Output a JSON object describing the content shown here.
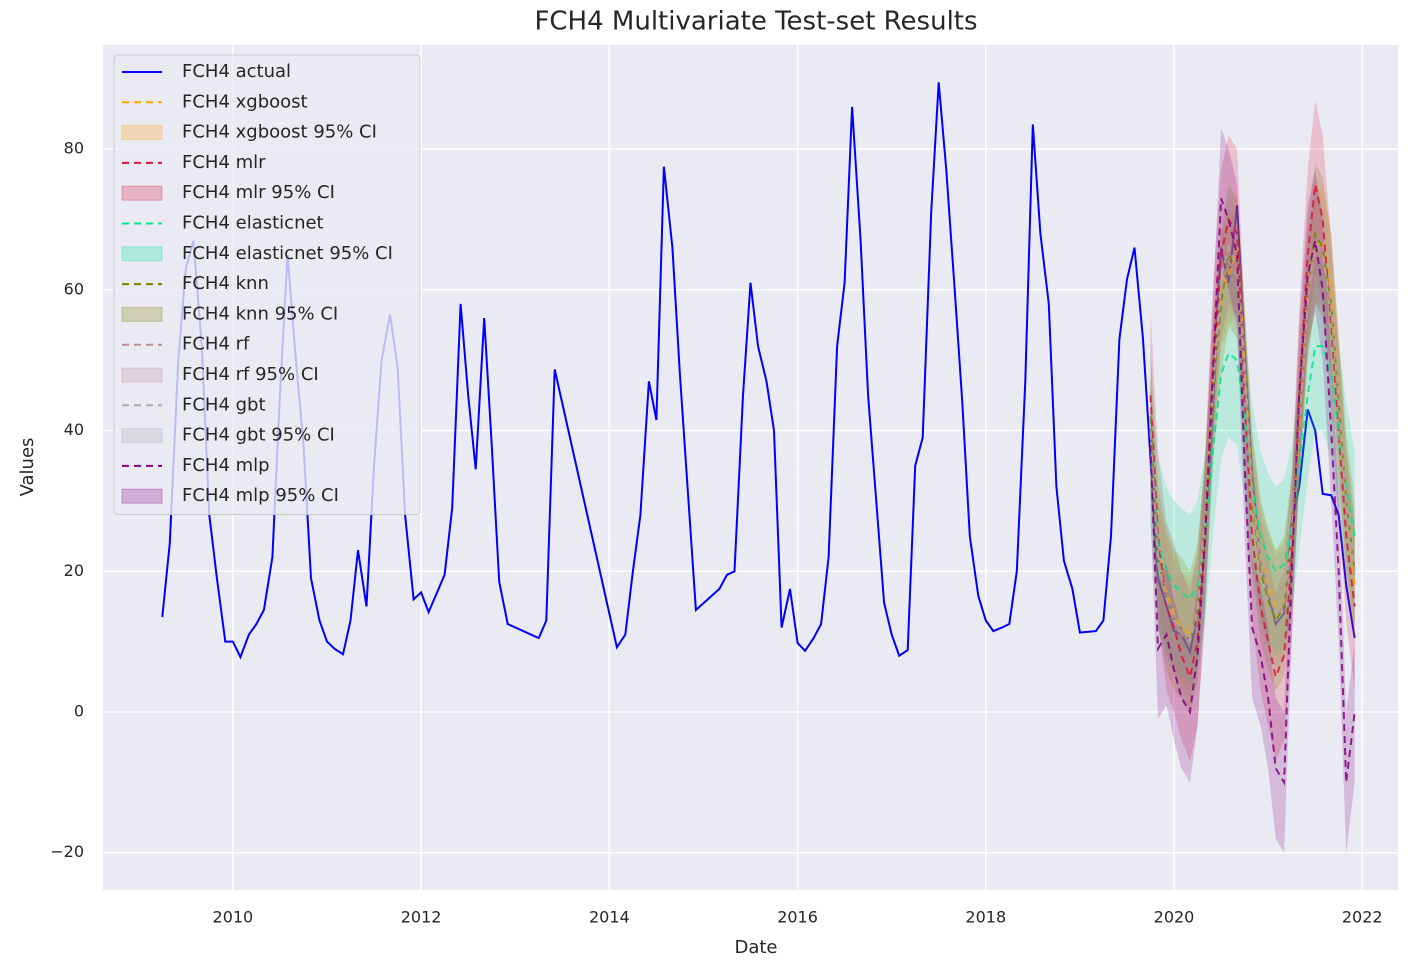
{
  "chart_data": {
    "type": "line",
    "title": "FCH4 Multivariate Test-set Results",
    "x_label": "Date",
    "y_label": "Values",
    "xlim": [
      2008.62,
      2022.38
    ],
    "ylim": [
      -25.3,
      94.8
    ],
    "xticks": [
      2010,
      2012,
      2014,
      2016,
      2018,
      2020,
      2022
    ],
    "yticks": [
      {
        "value": -20,
        "label": "−20"
      },
      0,
      20,
      40,
      60,
      80
    ],
    "grid": true,
    "legend": "upper left",
    "x": [
      2009.25,
      2009.33,
      2009.42,
      2009.5,
      2009.58,
      2009.67,
      2009.75,
      2009.83,
      2009.92,
      2010.0,
      2010.08,
      2010.17,
      2010.25,
      2010.33,
      2010.42,
      2010.5,
      2010.58,
      2010.67,
      2010.75,
      2010.83,
      2010.92,
      2011.0,
      2011.08,
      2011.17,
      2011.25,
      2011.33,
      2011.42,
      2011.5,
      2011.58,
      2011.67,
      2011.75,
      2011.83,
      2011.92,
      2012.0,
      2012.08,
      2012.17,
      2012.25,
      2012.33,
      2012.42,
      2012.5,
      2012.58,
      2012.67,
      2012.75,
      2012.83,
      2012.92,
      2013.25,
      2013.33,
      2013.42,
      2014.08,
      2014.17,
      2014.25,
      2014.33,
      2014.42,
      2014.5,
      2014.58,
      2014.67,
      2014.75,
      2014.92,
      2015.17,
      2015.25,
      2015.33,
      2015.42,
      2015.5,
      2015.58,
      2015.67,
      2015.75,
      2015.83,
      2015.92,
      2016.0,
      2016.08,
      2016.17,
      2016.25,
      2016.33,
      2016.42,
      2016.5,
      2016.58,
      2016.67,
      2016.75,
      2016.83,
      2016.92,
      2017.0,
      2017.08,
      2017.17,
      2017.25,
      2017.33,
      2017.42,
      2017.5,
      2017.58,
      2017.67,
      2017.75,
      2017.83,
      2017.92,
      2018.0,
      2018.08,
      2018.17,
      2018.25,
      2018.33,
      2018.42,
      2018.5,
      2018.58,
      2018.67,
      2018.75,
      2018.83,
      2018.92,
      2019.0,
      2019.17,
      2019.25,
      2019.33,
      2019.42,
      2019.5,
      2019.58,
      2019.67,
      2019.75,
      2019.83,
      2019.92,
      2020.0,
      2020.08,
      2020.17,
      2020.25,
      2020.33,
      2020.42,
      2020.5,
      2020.58,
      2020.67,
      2020.75,
      2020.83,
      2020.92,
      2021.0,
      2021.08,
      2021.17,
      2021.25,
      2021.33,
      2021.42,
      2021.5,
      2021.58,
      2021.67,
      2021.75,
      2021.83,
      2021.92
    ],
    "series": [
      {
        "name": "FCH4 actual",
        "color": "#0000ff",
        "values": [
          13.5,
          24,
          50,
          63,
          67,
          52,
          28,
          19,
          10,
          10,
          7.8,
          11,
          12.5,
          14.5,
          22,
          45,
          65,
          50,
          38,
          19,
          13,
          10,
          9,
          8.2,
          13,
          23,
          15,
          35,
          50,
          56.5,
          49,
          28,
          16,
          17,
          14.2,
          17,
          19.5,
          29,
          58,
          45,
          34.5,
          56,
          38,
          18.5,
          12.5,
          10.5,
          13,
          48.7,
          9.2,
          11,
          20,
          28,
          47,
          41.5,
          77.5,
          66,
          48,
          14.5,
          17.5,
          19.5,
          20,
          45,
          61,
          52,
          47,
          40,
          12,
          17.5,
          9.8,
          8.7,
          10.5,
          12.5,
          22,
          52,
          61,
          86,
          67,
          45,
          31,
          15.5,
          11,
          8,
          8.8,
          35,
          39,
          71,
          89.5,
          77,
          60,
          44,
          25,
          16.5,
          13,
          11.5,
          12,
          12.5,
          20,
          47,
          83.5,
          68,
          58,
          32,
          21.5,
          17.5,
          11.3,
          11.5,
          13,
          25,
          53,
          61.5,
          66,
          53,
          36,
          19,
          15,
          11.5,
          11,
          8.5,
          14,
          25,
          45,
          66,
          61,
          72,
          52,
          34,
          21,
          17,
          12.5,
          14,
          27,
          32,
          43,
          40,
          31,
          30.8,
          28,
          18,
          10.5
        ]
      }
    ],
    "test_x": [
      2019.75,
      2019.83,
      2019.92,
      2020.0,
      2020.08,
      2020.17,
      2020.25,
      2020.33,
      2020.42,
      2020.5,
      2020.58,
      2020.67,
      2020.75,
      2020.83,
      2020.92,
      2021.0,
      2021.08,
      2021.17,
      2021.25,
      2021.33,
      2021.42,
      2021.5,
      2021.58,
      2021.67,
      2021.75,
      2021.83,
      2021.92
    ],
    "models": [
      {
        "name": "FCH4 xgboost",
        "ci_name": "FCH4 xgboost 95% CI",
        "color": "#ffa500",
        "ci": 8,
        "values": [
          40,
          22,
          17,
          14,
          12,
          11,
          15,
          28,
          48,
          60,
          62,
          66,
          50,
          32,
          22,
          18,
          15,
          16,
          25,
          40,
          58,
          66,
          67,
          60,
          45,
          30,
          18
        ]
      },
      {
        "name": "FCH4 mlr",
        "ci_name": "FCH4 mlr 95% CI",
        "color": "#dc143c",
        "ci": 12,
        "values": [
          45,
          25,
          15,
          12,
          8,
          5,
          10,
          25,
          50,
          65,
          70,
          68,
          45,
          25,
          15,
          10,
          5,
          8,
          22,
          45,
          65,
          75,
          70,
          55,
          40,
          25,
          15
        ]
      },
      {
        "name": "FCH4 elasticnet",
        "ci_name": "FCH4 elasticnet 95% CI",
        "color": "#00e68a",
        "ci": 12,
        "values": [
          38,
          24,
          20,
          18,
          17,
          16,
          18,
          25,
          38,
          48,
          51,
          50,
          42,
          32,
          25,
          22,
          20,
          21,
          26,
          35,
          45,
          52,
          52,
          48,
          40,
          32,
          25
        ]
      },
      {
        "name": "FCH4 knn",
        "ci_name": "FCH4 knn 95% CI",
        "color": "#808000",
        "ci": 10,
        "values": [
          42,
          22,
          16,
          13,
          12,
          10,
          14,
          26,
          46,
          58,
          65,
          63,
          48,
          30,
          20,
          16,
          13,
          15,
          24,
          42,
          60,
          68,
          66,
          58,
          44,
          30,
          20
        ]
      },
      {
        "name": "FCH4 rf",
        "ci_name": "FCH4 rf 95% CI",
        "color": "#bc8f8f",
        "ci": 8,
        "values": [
          40,
          22,
          16,
          13,
          11,
          10,
          15,
          27,
          47,
          60,
          64,
          62,
          48,
          31,
          21,
          17,
          14,
          15,
          25,
          41,
          58,
          66,
          65,
          57,
          43,
          29,
          19
        ]
      },
      {
        "name": "FCH4 gbt",
        "ci_name": "FCH4 gbt 95% CI",
        "color": "#a9a9a9",
        "ci": 8,
        "values": [
          40,
          21,
          16,
          13,
          12,
          10,
          14,
          27,
          47,
          62,
          66,
          63,
          48,
          31,
          21,
          17,
          14,
          16,
          25,
          42,
          60,
          67,
          65,
          58,
          44,
          30,
          20
        ]
      },
      {
        "name": "FCH4 mlp",
        "ci_name": "FCH4 mlp 95% CI",
        "color": "#800080",
        "ci": 10,
        "values": [
          38,
          9,
          11,
          6,
          2,
          0,
          8,
          25,
          50,
          73,
          70,
          65,
          35,
          12,
          8,
          2,
          -8,
          -10,
          20,
          45,
          62,
          67,
          60,
          40,
          20,
          -10,
          0
        ]
      }
    ]
  }
}
